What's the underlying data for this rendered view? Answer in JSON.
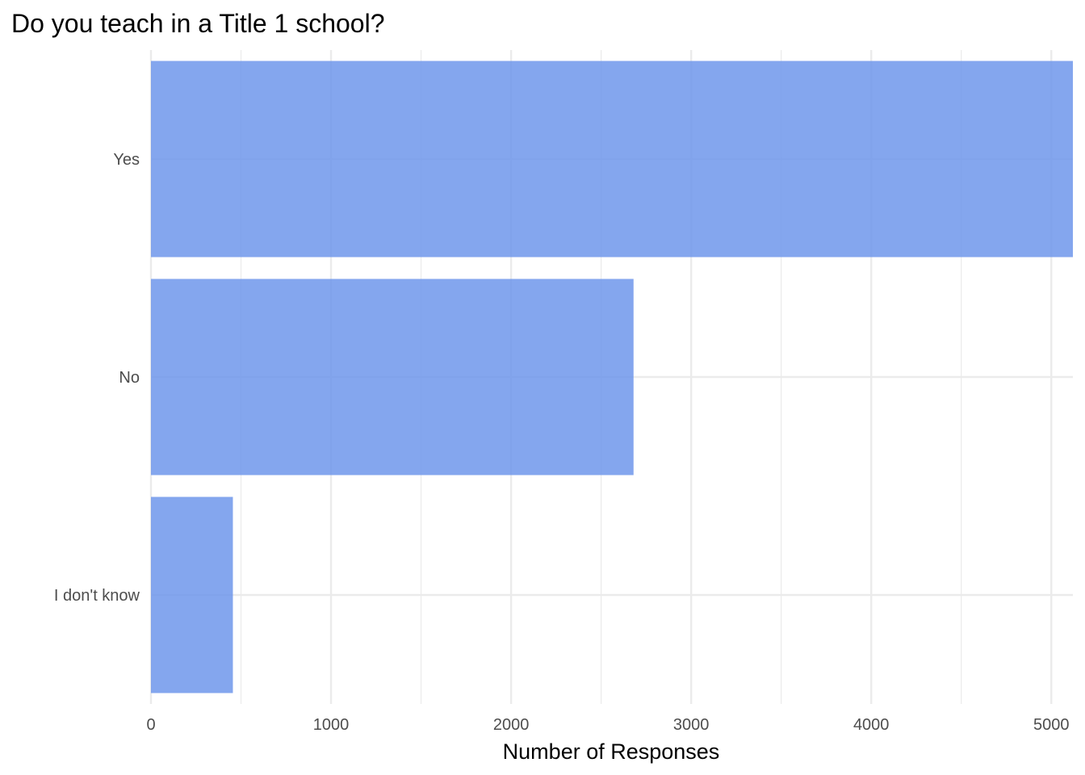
{
  "chart_data": {
    "type": "bar",
    "orientation": "horizontal",
    "title": "Do you teach in a Title 1 school?",
    "xlabel": "Number of Responses",
    "ylabel": "",
    "categories": [
      "Yes",
      "No",
      "I don't know"
    ],
    "values": [
      5120,
      2680,
      455
    ],
    "xlim": [
      0,
      5120
    ],
    "x_ticks": [
      0,
      1000,
      2000,
      3000,
      4000,
      5000
    ],
    "x_tick_labels": [
      "0",
      "1000",
      "2000",
      "3000",
      "4000",
      "5000"
    ],
    "x_minor_ticks": [
      500,
      1500,
      2500,
      3500,
      4500
    ],
    "grid": true,
    "legend": "none",
    "bar_color": "#6f97eb",
    "bar_opacity": 0.85,
    "grid_color": "#ebebeb",
    "background": "#ffffff"
  }
}
